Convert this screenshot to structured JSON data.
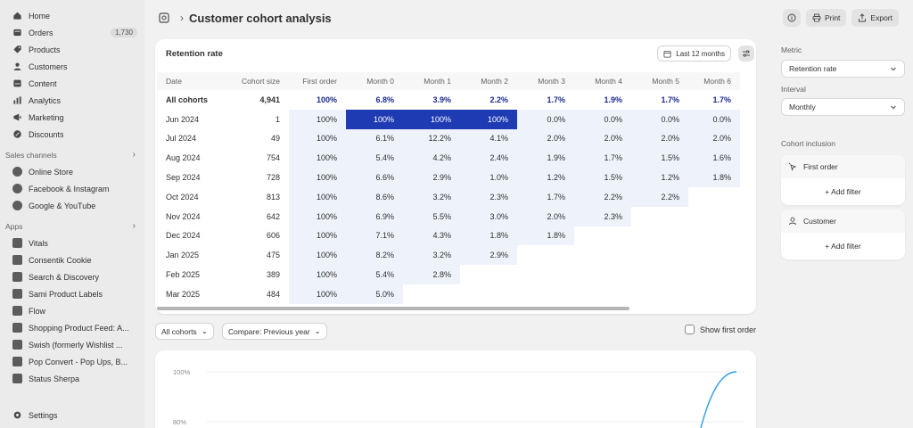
{
  "sidebar": {
    "main_items": [
      {
        "label": "Home",
        "icon": "home-icon"
      },
      {
        "label": "Orders",
        "icon": "orders-icon",
        "badge": "1,730"
      },
      {
        "label": "Products",
        "icon": "tag-icon"
      },
      {
        "label": "Customers",
        "icon": "person-icon"
      },
      {
        "label": "Content",
        "icon": "content-icon"
      },
      {
        "label": "Analytics",
        "icon": "analytics-icon"
      },
      {
        "label": "Marketing",
        "icon": "marketing-icon"
      },
      {
        "label": "Discounts",
        "icon": "discount-icon"
      }
    ],
    "sales_channels_label": "Sales channels",
    "sales_channels": [
      {
        "label": "Online Store"
      },
      {
        "label": "Facebook & Instagram"
      },
      {
        "label": "Google & YouTube"
      }
    ],
    "apps_label": "Apps",
    "apps": [
      {
        "label": "Vitals"
      },
      {
        "label": "Consentik Cookie"
      },
      {
        "label": "Search & Discovery"
      },
      {
        "label": "Sami Product Labels"
      },
      {
        "label": "Flow"
      },
      {
        "label": "Shopping Product Feed: A..."
      },
      {
        "label": "Swish (formerly Wishlist ..."
      },
      {
        "label": "Pop Convert - Pop Ups, B..."
      },
      {
        "label": "Status Sherpa"
      }
    ],
    "settings_label": "Settings"
  },
  "header": {
    "title": "Customer cohort analysis",
    "print_label": "Print",
    "export_label": "Export"
  },
  "retention": {
    "title": "Retention rate",
    "range_label": "Last 12 months",
    "columns": [
      "Date",
      "Cohort size",
      "First order",
      "Month 0",
      "Month 1",
      "Month 2",
      "Month 3",
      "Month 4",
      "Month 5",
      "Month 6"
    ],
    "rows": [
      [
        "All cohorts",
        "4,941",
        "100%",
        "6.8%",
        "3.9%",
        "2.2%",
        "1.7%",
        "1.9%",
        "1.7%",
        "1.7%"
      ],
      [
        "Jun 2024",
        "1",
        "100%",
        "100%",
        "100%",
        "100%",
        "0.0%",
        "0.0%",
        "0.0%",
        "0.0%"
      ],
      [
        "Jul 2024",
        "49",
        "100%",
        "6.1%",
        "12.2%",
        "4.1%",
        "2.0%",
        "2.0%",
        "2.0%",
        "2.0%"
      ],
      [
        "Aug 2024",
        "754",
        "100%",
        "5.4%",
        "4.2%",
        "2.4%",
        "1.9%",
        "1.7%",
        "1.5%",
        "1.6%"
      ],
      [
        "Sep 2024",
        "728",
        "100%",
        "6.6%",
        "2.9%",
        "1.0%",
        "1.2%",
        "1.5%",
        "1.2%",
        "1.8%"
      ],
      [
        "Oct 2024",
        "813",
        "100%",
        "8.6%",
        "3.2%",
        "2.3%",
        "1.7%",
        "2.2%",
        "2.2%",
        ""
      ],
      [
        "Nov 2024",
        "642",
        "100%",
        "6.9%",
        "5.5%",
        "3.0%",
        "2.0%",
        "2.3%",
        "",
        ""
      ],
      [
        "Dec 2024",
        "606",
        "100%",
        "7.1%",
        "4.3%",
        "1.8%",
        "1.8%",
        "",
        "",
        ""
      ],
      [
        "Jan 2025",
        "475",
        "100%",
        "8.2%",
        "3.2%",
        "2.9%",
        "",
        "",
        "",
        ""
      ],
      [
        "Feb 2025",
        "389",
        "100%",
        "5.4%",
        "2.8%",
        "",
        "",
        "",
        "",
        ""
      ],
      [
        "Mar 2025",
        "484",
        "100%",
        "5.0%",
        "",
        "",
        "",
        "",
        "",
        ""
      ]
    ]
  },
  "controls": {
    "cohorts_label": "All cohorts",
    "compare_label": "Compare: Previous year",
    "show_first_order_label": "Show first order"
  },
  "chart": {
    "y_ticks": [
      "100%",
      "80%"
    ]
  },
  "right_panel": {
    "metric_label": "Metric",
    "metric_value": "Retention rate",
    "interval_label": "Interval",
    "interval_value": "Monthly",
    "inclusion_label": "Cohort inclusion",
    "first_order_label": "First order",
    "customer_label": "Customer",
    "add_filter_label": "+ Add filter"
  },
  "colors": {
    "heat_strong": "#1f3bb3",
    "heat_light": "#eef2fb",
    "accent_text": "#1b2a8c"
  }
}
